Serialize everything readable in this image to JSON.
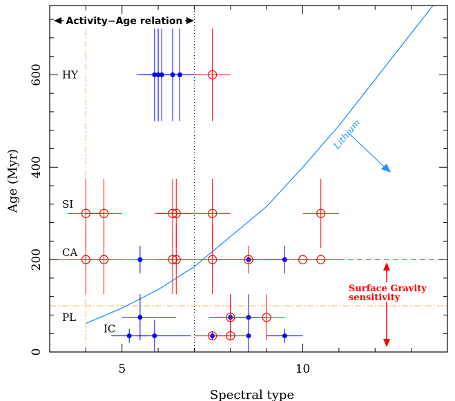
{
  "chart_data": {
    "type": "scatter",
    "xlabel": "Spectral type",
    "ylabel": "Age (Myr)",
    "xlim": [
      3.0,
      14.0
    ],
    "ylim": [
      0,
      750
    ],
    "x_ticks": [
      5,
      10
    ],
    "y_ticks": [
      0,
      200,
      400,
      600
    ],
    "group_labels": [
      {
        "label": "HY",
        "y": 600
      },
      {
        "label": "SI",
        "y": 320
      },
      {
        "label": "CA",
        "y": 215
      },
      {
        "label": "PL",
        "y": 75
      },
      {
        "label": "IC",
        "y": 50
      }
    ],
    "annotations": {
      "activity_age": "Activity−Age relation",
      "lithium": "Lithium",
      "surface_gravity_line1": "Surface Gravity",
      "surface_gravity_line2": "sensitivity"
    },
    "colors": {
      "filled": "#0000ff",
      "open": "#ff0000",
      "lithium": "#1e90ff",
      "dashdot": "#ffa040",
      "redline": "#ff0000",
      "dotted": "#000000"
    },
    "lithium_curve": {
      "x": [
        4.0,
        5.0,
        6.0,
        7.0,
        8.0,
        9.0,
        10.0,
        11.0,
        12.0,
        13.0,
        13.6
      ],
      "y": [
        62,
        95,
        135,
        185,
        250,
        315,
        400,
        490,
        590,
        690,
        750
      ]
    },
    "series": [
      {
        "name": "",
        "marker": "filled-circle",
        "points": [
          {
            "x": 5.9,
            "y": 600,
            "xerr": [
              0.5,
              0.5
            ],
            "yerr": [
              100,
              100
            ]
          },
          {
            "x": 6.0,
            "y": 600,
            "xerr": [
              0.5,
              0.5
            ],
            "yerr": [
              100,
              100
            ]
          },
          {
            "x": 6.1,
            "y": 600,
            "xerr": [
              0.5,
              0.5
            ],
            "yerr": [
              100,
              100
            ]
          },
          {
            "x": 6.4,
            "y": 600,
            "xerr": [
              0.6,
              0.6
            ],
            "yerr": [
              100,
              100
            ]
          },
          {
            "x": 6.6,
            "y": 600,
            "xerr": [
              0.6,
              0.6
            ],
            "yerr": [
              100,
              100
            ]
          },
          {
            "x": 5.5,
            "y": 200,
            "xerr": [
              0,
              0
            ],
            "yerr": [
              30,
              30
            ]
          },
          {
            "x": 8.5,
            "y": 200,
            "xerr": [
              1.0,
              1.0
            ],
            "yerr": [
              30,
              30
            ]
          },
          {
            "x": 9.5,
            "y": 200,
            "xerr": [
              0,
              0
            ],
            "yerr": [
              30,
              30
            ]
          },
          {
            "x": 5.5,
            "y": 75,
            "xerr": [
              0.5,
              1.0
            ],
            "yerr": [
              50,
              50
            ]
          },
          {
            "x": 8.0,
            "y": 75,
            "xerr": [
              0.6,
              0.6
            ],
            "yerr": [
              50,
              50
            ]
          },
          {
            "x": 8.5,
            "y": 75,
            "xerr": [
              0.5,
              0.5
            ],
            "yerr": [
              50,
              50
            ]
          },
          {
            "x": 5.2,
            "y": 35,
            "xerr": [
              0.5,
              0.5
            ],
            "yerr": [
              15,
              15
            ]
          },
          {
            "x": 5.9,
            "y": 35,
            "xerr": [
              0.5,
              1.0
            ],
            "yerr": [
              35,
              35
            ]
          },
          {
            "x": 7.5,
            "y": 35,
            "xerr": [
              0,
              0
            ],
            "yerr": [
              10,
              10
            ]
          },
          {
            "x": 8.5,
            "y": 35,
            "xerr": [
              0,
              0
            ],
            "yerr": [
              35,
              35
            ]
          },
          {
            "x": 9.5,
            "y": 35,
            "xerr": [
              0.5,
              0.5
            ],
            "yerr": [
              15,
              15
            ]
          }
        ]
      },
      {
        "name": "",
        "marker": "open-circle",
        "points": [
          {
            "x": 7.5,
            "y": 600,
            "xerr": [
              0.5,
              0.5
            ],
            "yerr": [
              100,
              100
            ]
          },
          {
            "x": 4.0,
            "y": 300,
            "xerr": [
              0.5,
              0.5
            ],
            "yerr": [
              75,
              75
            ]
          },
          {
            "x": 4.5,
            "y": 300,
            "xerr": [
              0.5,
              0.5
            ],
            "yerr": [
              75,
              75
            ]
          },
          {
            "x": 6.4,
            "y": 300,
            "xerr": [
              0.5,
              0.5
            ],
            "yerr": [
              75,
              75
            ]
          },
          {
            "x": 6.5,
            "y": 300,
            "xerr": [
              0.5,
              0.5
            ],
            "yerr": [
              75,
              75
            ]
          },
          {
            "x": 7.5,
            "y": 300,
            "xerr": [
              0.5,
              0.5
            ],
            "yerr": [
              75,
              75
            ]
          },
          {
            "x": 10.5,
            "y": 300,
            "xerr": [
              0.5,
              0.5
            ],
            "yerr": [
              75,
              75
            ]
          },
          {
            "x": 4.0,
            "y": 200,
            "xerr": [
              0.5,
              0.5
            ],
            "yerr": [
              75,
              75
            ]
          },
          {
            "x": 4.5,
            "y": 200,
            "xerr": [
              0.5,
              0.5
            ],
            "yerr": [
              75,
              75
            ]
          },
          {
            "x": 6.4,
            "y": 200,
            "xerr": [
              0.5,
              0.5
            ],
            "yerr": [
              75,
              75
            ]
          },
          {
            "x": 6.5,
            "y": 200,
            "xerr": [
              0.5,
              0.5
            ],
            "yerr": [
              75,
              75
            ]
          },
          {
            "x": 7.5,
            "y": 200,
            "xerr": [
              0.5,
              0.5
            ],
            "yerr": [
              75,
              75
            ]
          },
          {
            "x": 8.5,
            "y": 200,
            "xerr": [
              0.5,
              0.5
            ],
            "yerr": [
              30,
              30
            ]
          },
          {
            "x": 10.0,
            "y": 200,
            "xerr": [
              0.5,
              0.5
            ],
            "yerr": [
              0,
              0
            ]
          },
          {
            "x": 10.5,
            "y": 200,
            "xerr": [
              0.6,
              0.6
            ],
            "yerr": [
              0,
              0
            ]
          },
          {
            "x": 7.5,
            "y": 35,
            "xerr": [
              0.5,
              0.5
            ],
            "yerr": [
              0,
              0
            ]
          },
          {
            "x": 8.0,
            "y": 35,
            "xerr": [
              0.5,
              0.5
            ],
            "yerr": [
              0,
              0
            ]
          },
          {
            "x": 8.0,
            "y": 75,
            "xerr": [
              0.5,
              0.5
            ],
            "yerr": [
              50,
              50
            ]
          },
          {
            "x": 9.0,
            "y": 75,
            "xerr": [
              0.5,
              0.5
            ],
            "yerr": [
              50,
              50
            ]
          }
        ]
      }
    ]
  }
}
